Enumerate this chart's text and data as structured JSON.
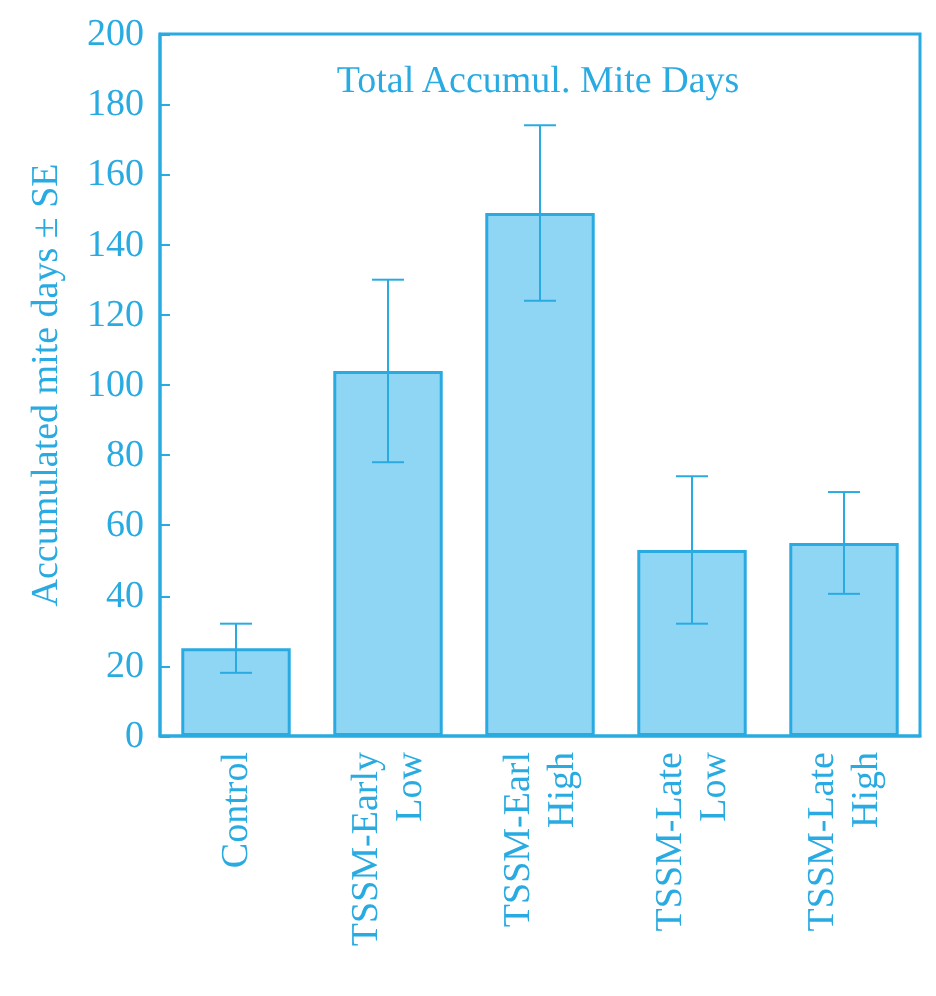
{
  "chart_data": {
    "type": "bar",
    "title": "Total Accumul. Mite Days",
    "ylabel": "Accumulated mite days ± SE",
    "categories": [
      "Control",
      "TSSM-Early Low",
      "TSSM-Earl High",
      "TSSM-Late Low",
      "TSSM-Late High"
    ],
    "values": [
      25,
      104,
      149,
      53,
      55
    ],
    "errors": [
      7,
      26,
      25,
      21,
      14.5
    ],
    "color": "#8fd6f5",
    "ylim": [
      0,
      200
    ],
    "yticks": [
      0,
      20,
      40,
      60,
      80,
      100,
      120,
      140,
      160,
      180,
      200
    ],
    "grid": false
  }
}
